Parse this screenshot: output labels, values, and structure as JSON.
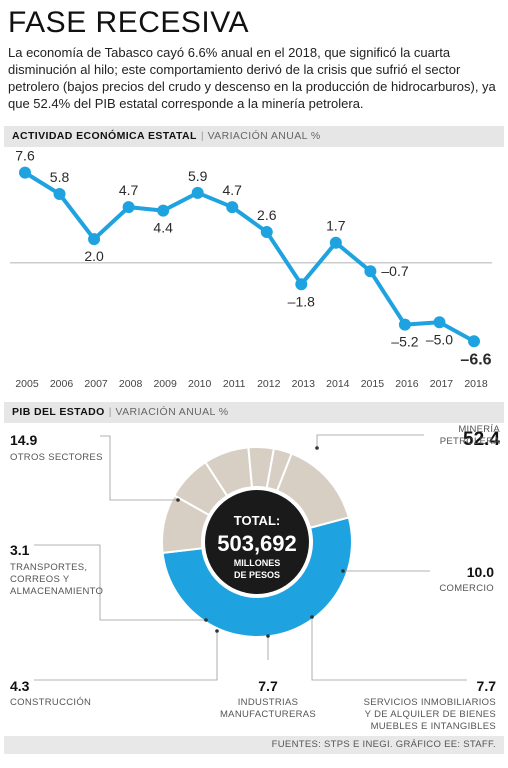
{
  "title": "FASE RECESIVA",
  "intro": "La economía de Tabasco cayó 6.6% anual en el 2018, que significó la cuarta disminución al hilo; este comportamiento derivó de la crisis que sufrió el sector petrolero (bajos precios del crudo y descenso en la producción de hidrocarburos), ya que 52.4% del PIB estatal corresponde a la minería petrolera.",
  "section1": {
    "bold": "ACTIVIDAD ECONÓMICA ESTATAL",
    "sub": "VARIACIÓN ANUAL %"
  },
  "section2": {
    "bold": "PIB DEL ESTADO",
    "sub": "VARIACIÓN ANUAL %"
  },
  "source": "FUENTES: STPS E INEGI. GRÁFICO EE: STAFF.",
  "colors": {
    "accent": "#1fa3e0",
    "slice": "#d8cfc4",
    "center": "#1a1a1a",
    "bar": "#e6e6e6"
  },
  "donut_center": {
    "label": "TOTAL:",
    "value": "503,692",
    "unit_line1": "MILLONES",
    "unit_line2": "DE PESOS"
  },
  "chart_data": [
    {
      "type": "line",
      "title": "ACTIVIDAD ECONÓMICA ESTATAL",
      "subtitle": "VARIACIÓN ANUAL %",
      "x": [
        "2005",
        "2006",
        "2007",
        "2008",
        "2009",
        "2010",
        "2011",
        "2012",
        "2013",
        "2014",
        "2015",
        "2016",
        "2017",
        "2018"
      ],
      "values": [
        7.6,
        5.8,
        2.0,
        4.7,
        4.4,
        5.9,
        4.7,
        2.6,
        -1.8,
        1.7,
        -0.7,
        -5.2,
        -5.0,
        -6.6
      ],
      "labels": [
        "7.6",
        "5.8",
        "2.0",
        "4.7",
        "4.4",
        "5.9",
        "4.7",
        "2.6",
        "-1.8",
        "1.7",
        "-0.7",
        "-5.2",
        "-5.0",
        "-6.6"
      ],
      "ylim": [
        -7.5,
        9
      ],
      "zero_line": true
    },
    {
      "type": "pie",
      "title": "PIB DEL ESTADO",
      "subtitle": "VARIACIÓN ANUAL %",
      "slices": [
        {
          "name": "MINERÍA PETROLERA",
          "value": 52.4,
          "label": "52.4",
          "lines": [
            "MINERÍA",
            "PETROLERA"
          ]
        },
        {
          "name": "COMERCIO",
          "value": 10.0,
          "label": "10.0",
          "lines": [
            "COMERCIO"
          ]
        },
        {
          "name": "SERVICIOS INMOBILIARIOS Y DE ALQUILER DE BIENES MUEBLES E INTANGIBLES",
          "value": 7.7,
          "label": "7.7",
          "lines": [
            "SERVICIOS INMOBILIARIOS",
            "Y DE ALQUILER DE BIENES",
            "MUEBLES E INTANGIBLES"
          ]
        },
        {
          "name": "INDUSTRIAS MANUFACTURERAS",
          "value": 7.7,
          "label": "7.7",
          "lines": [
            "INDUSTRIAS",
            "MANUFACTURERAS"
          ]
        },
        {
          "name": "CONSTRUCCIÓN",
          "value": 4.3,
          "label": "4.3",
          "lines": [
            "CONSTRUCCIÓN"
          ]
        },
        {
          "name": "TRANSPORTES, CORREOS Y ALMACENAMIENTO",
          "value": 3.1,
          "label": "3.1",
          "lines": [
            "TRANSPORTES,",
            "CORREOS Y",
            "ALMACENAMIENTO"
          ]
        },
        {
          "name": "OTROS SECTORES",
          "value": 14.9,
          "label": "14.9",
          "lines": [
            "OTROS SECTORES"
          ]
        }
      ]
    }
  ]
}
